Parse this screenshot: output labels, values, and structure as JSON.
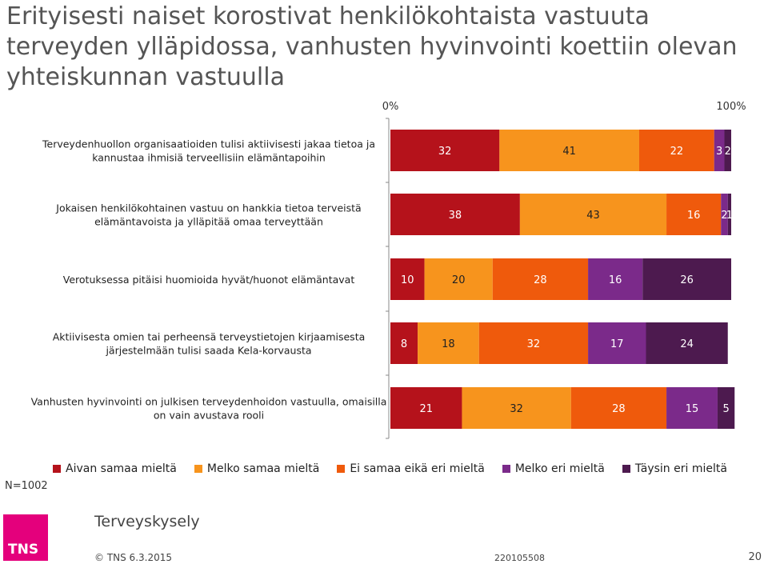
{
  "title": "Erityisesti naiset korostivat henkilökohtaista vastuuta terveyden ylläpidossa, vanhusten hyvinvointi koettiin olevan yhteiskunnan vastuulla",
  "chart_data": {
    "type": "bar",
    "orientation": "horizontal",
    "stacked": true,
    "axis_labels": [
      "0%",
      "100%"
    ],
    "xlim": [
      0,
      100
    ],
    "categories": [
      "Terveydenhuollon organisaatioiden tulisi aktiivisesti jakaa tietoa ja kannustaa ihmisiä terveellisiin elämäntapoihin",
      "Jokaisen henkilökohtainen vastuu on hankkia tietoa terveistä elämäntavoista ja ylläpitää omaa terveyttään",
      "Verotuksessa pitäisi huomioida hyvät/huonot elämäntavat",
      "Aktiivisesta omien tai perheensä terveystietojen kirjaamisesta järjestelmään tulisi saada Kela-korvausta",
      "Vanhusten hyvinvointi on julkisen terveydenhoidon vastuulla, omaisilla on vain avustava rooli"
    ],
    "series": [
      {
        "name": "Aivan samaa mieltä",
        "color": "#b5121b",
        "values": [
          32,
          38,
          10,
          8,
          21
        ]
      },
      {
        "name": "Melko samaa mieltä",
        "color": "#f7941d",
        "values": [
          41,
          43,
          20,
          18,
          32
        ]
      },
      {
        "name": "Ei samaa eikä eri mieltä",
        "color": "#ef5a0c",
        "values": [
          22,
          16,
          28,
          32,
          28
        ]
      },
      {
        "name": "Melko eri mieltä",
        "color": "#7b2a8a",
        "values": [
          3,
          2,
          16,
          17,
          15
        ]
      },
      {
        "name": "Täysin eri mieltä",
        "color": "#4d1a4f",
        "values": [
          2,
          1,
          26,
          24,
          5
        ]
      }
    ],
    "legend_position": "bottom"
  },
  "sample_size": "N=1002",
  "brand": "Terveyskysely",
  "logo_text": "TNS",
  "footer": {
    "copyright": "© TNS 6.3.2015",
    "code": "220105508",
    "page": "20"
  }
}
